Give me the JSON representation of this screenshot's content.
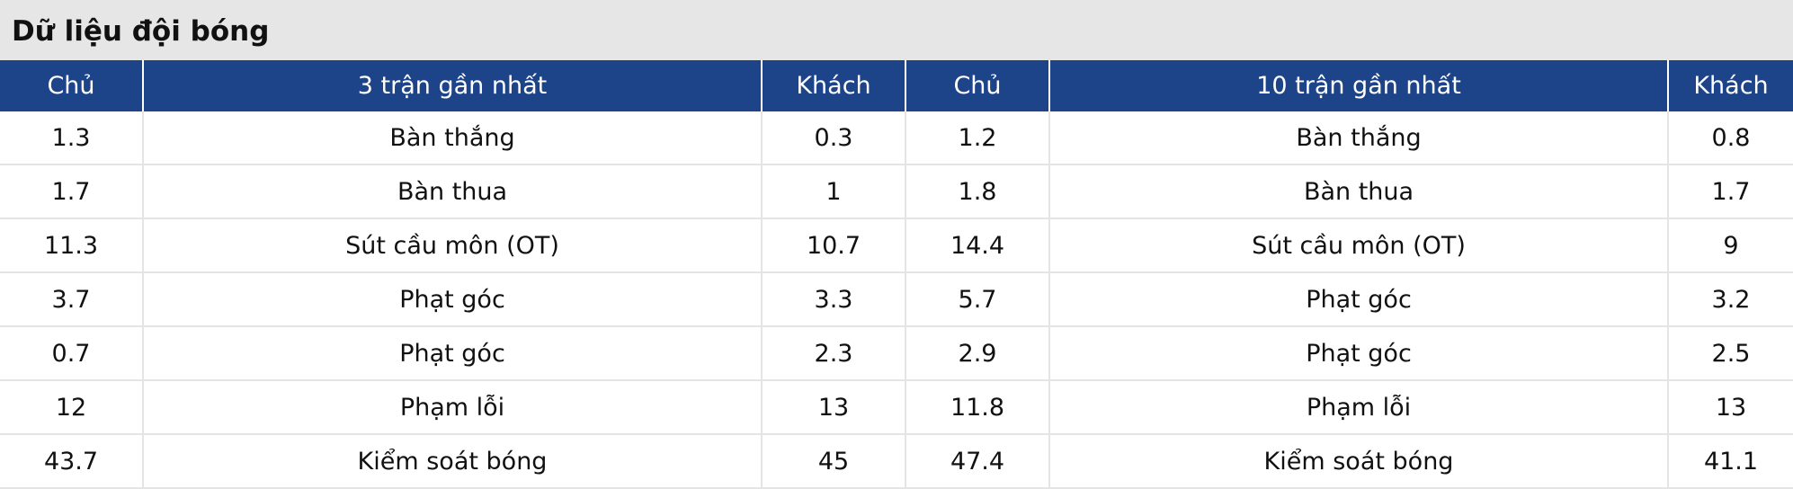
{
  "title": "Dữ liệu đội bóng",
  "table": {
    "header": [
      "Chủ",
      "3 trận gần nhất",
      "Khách",
      "Chủ",
      "10 trận gần nhất",
      "Khách"
    ],
    "rows": [
      [
        1.3,
        "Bàn thắng",
        0.3,
        1.2,
        "Bàn thắng",
        0.8
      ],
      [
        1.7,
        "Bàn thua",
        1,
        1.8,
        "Bàn thua",
        1.7
      ],
      [
        11.3,
        "Sút cầu môn (OT)",
        10.7,
        14.4,
        "Sút cầu môn (OT)",
        9
      ],
      [
        3.7,
        "Phạt góc",
        3.3,
        5.7,
        "Phạt góc",
        3.2
      ],
      [
        0.7,
        "Phạt góc",
        2.3,
        2.9,
        "Phạt góc",
        2.5
      ],
      [
        12,
        "Phạm lỗi",
        13,
        11.8,
        "Phạm lỗi",
        13
      ],
      [
        43.7,
        "Kiểm soát bóng",
        45,
        47.4,
        "Kiểm soát bóng",
        41.1
      ]
    ]
  }
}
